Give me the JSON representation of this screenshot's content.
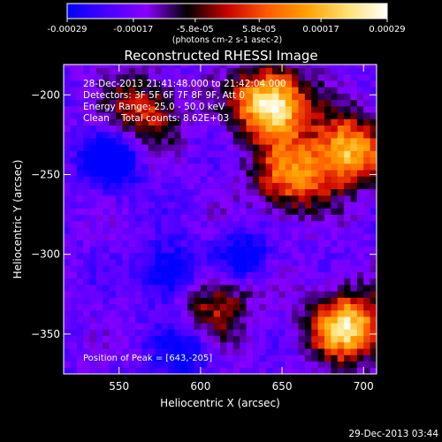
{
  "chart_data": {
    "type": "heatmap",
    "title": "Reconstructed RHESSI Image",
    "xlabel": "Heliocentric X (arcsec)",
    "ylabel": "Heliocentric Y (arcsec)",
    "xlim": [
      516,
      708
    ],
    "ylim": [
      -375,
      -181
    ],
    "xticks": [
      550,
      600,
      650,
      700
    ],
    "yticks": [
      -200,
      -250,
      -300,
      -350
    ],
    "colorbar": {
      "ticks": [
        "-0.00029",
        "-0.00017",
        "-5.8e-05",
        "5.8e-05",
        "0.00017",
        "0.00029"
      ],
      "unit_text": "(photons cm-2 s-1 asec-2)",
      "range": [
        -0.00029,
        0.00029
      ],
      "colormap": [
        "#0000ff",
        "#4800ff",
        "#8800ff",
        "#000000",
        "#c80000",
        "#ff5a00",
        "#ffa000",
        "#ffe070",
        "#ffffff"
      ]
    },
    "info_lines": [
      "28-Dec-2013 21:41:48.000 to 21:42:04.000",
      "Detectors: 3F 5F 6F 7F 8F 9F, Att 0",
      "Energy Range: 25.0 - 50.0 keV",
      "Clean    Total counts: 8.62E+03"
    ],
    "peak_label": "Position of Peak = [643,-205]",
    "bright_sources": [
      {
        "x": 643,
        "y": -205,
        "level": 1.0
      },
      {
        "x": 690,
        "y": -345,
        "level": 0.85
      },
      {
        "x": 690,
        "y": -235,
        "level": 0.8
      },
      {
        "x": 655,
        "y": -252,
        "level": 0.6
      },
      {
        "x": 565,
        "y": -210,
        "level": 0.5
      },
      {
        "x": 610,
        "y": -330,
        "level": 0.45
      }
    ],
    "dim_sources": [
      {
        "x": 545,
        "y": -240,
        "level": 1.0
      },
      {
        "x": 582,
        "y": -312,
        "level": 0.8
      },
      {
        "x": 625,
        "y": -302,
        "level": 0.7
      },
      {
        "x": 590,
        "y": -360,
        "level": 0.6
      }
    ]
  },
  "timestamp": "29-Dec-2013 03:44"
}
